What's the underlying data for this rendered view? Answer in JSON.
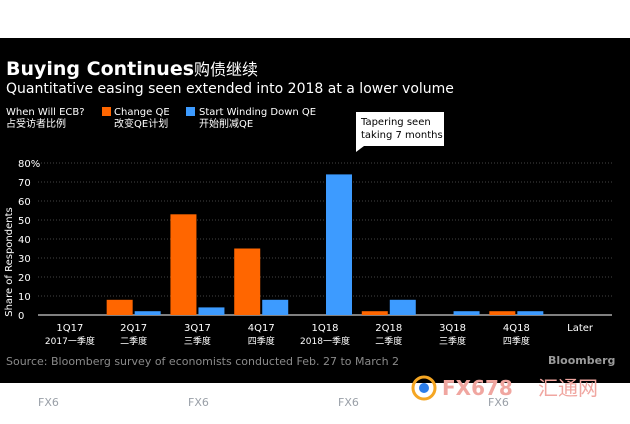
{
  "title": "Buying Continues",
  "title_cn": "购债继续",
  "subtitle": "Quantitative easing seen extended into 2018 at a lower volume",
  "legend": {
    "question": "When Will ECB?",
    "question_cn": "占受访者比例",
    "items": [
      {
        "label": "Change QE",
        "label_cn": "改变QE计划",
        "color": "#ff6600"
      },
      {
        "label": "Start Winding Down QE",
        "label_cn": "开始削减QE",
        "color": "#3d9bff"
      }
    ]
  },
  "annotation": {
    "line1": "Tapering seen",
    "line2": "taking 7 months"
  },
  "source": "Source: Bloomberg survey of economists conducted Feb. 27 to March 2",
  "brand": "Bloomberg",
  "watermark": {
    "brand": "FX678",
    "brand_cn": "汇通网",
    "stamp": "FX6"
  },
  "chart_data": {
    "type": "bar",
    "ylabel": "Share of Respondents",
    "ylim": [
      0,
      80
    ],
    "yticks": [
      "0",
      "10",
      "20",
      "30",
      "40",
      "50",
      "60",
      "70",
      "80%"
    ],
    "categories": [
      "1Q17",
      "2Q17",
      "3Q17",
      "4Q17",
      "1Q18",
      "2Q18",
      "3Q18",
      "4Q18",
      "Later"
    ],
    "categories_cn": [
      "2017一季度",
      "二季度",
      "三季度",
      "四季度",
      "2018一季度",
      "二季度",
      "三季度",
      "四季度",
      ""
    ],
    "series": [
      {
        "name": "Change QE",
        "color": "#ff6600",
        "values": [
          0,
          8,
          53,
          35,
          0,
          2,
          0,
          2,
          0
        ]
      },
      {
        "name": "Start Winding Down QE",
        "color": "#3d9bff",
        "values": [
          0,
          2,
          4,
          8,
          74,
          8,
          2,
          2,
          0
        ]
      }
    ]
  }
}
